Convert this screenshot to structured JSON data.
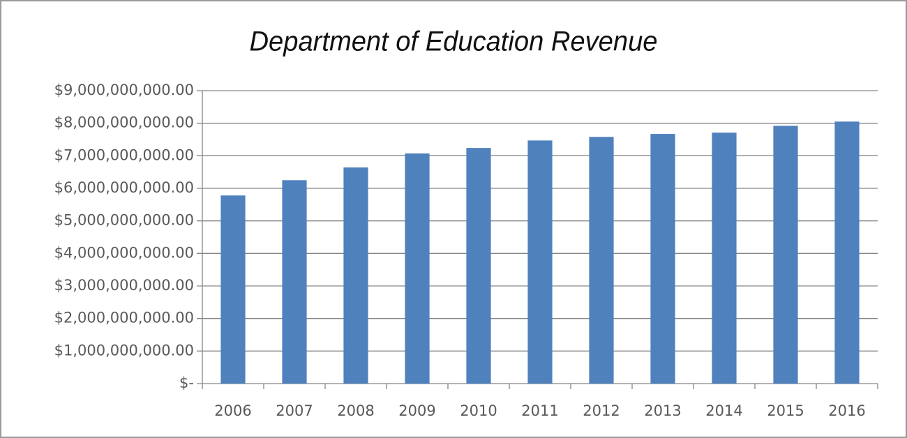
{
  "chart_data": {
    "type": "bar",
    "title": "Department of Education Revenue",
    "categories": [
      "2006",
      "2007",
      "2008",
      "2009",
      "2010",
      "2011",
      "2012",
      "2013",
      "2014",
      "2015",
      "2016"
    ],
    "values": [
      5780000000,
      6250000000,
      6640000000,
      7070000000,
      7240000000,
      7470000000,
      7580000000,
      7670000000,
      7710000000,
      7920000000,
      8050000000
    ],
    "color": "#4f81bd",
    "ylim": [
      0,
      9000000000
    ],
    "yticks": [
      {
        "value": 0,
        "label": "$-"
      },
      {
        "value": 1000000000,
        "label": "$1,000,000,000.00"
      },
      {
        "value": 2000000000,
        "label": "$2,000,000,000.00"
      },
      {
        "value": 3000000000,
        "label": "$3,000,000,000.00"
      },
      {
        "value": 4000000000,
        "label": "$4,000,000,000.00"
      },
      {
        "value": 5000000000,
        "label": "$5,000,000,000.00"
      },
      {
        "value": 6000000000,
        "label": "$6,000,000,000.00"
      },
      {
        "value": 7000000000,
        "label": "$7,000,000,000.00"
      },
      {
        "value": 8000000000,
        "label": "$8,000,000,000.00"
      },
      {
        "value": 9000000000,
        "label": "$9,000,000,000.00"
      }
    ],
    "grid": true
  }
}
